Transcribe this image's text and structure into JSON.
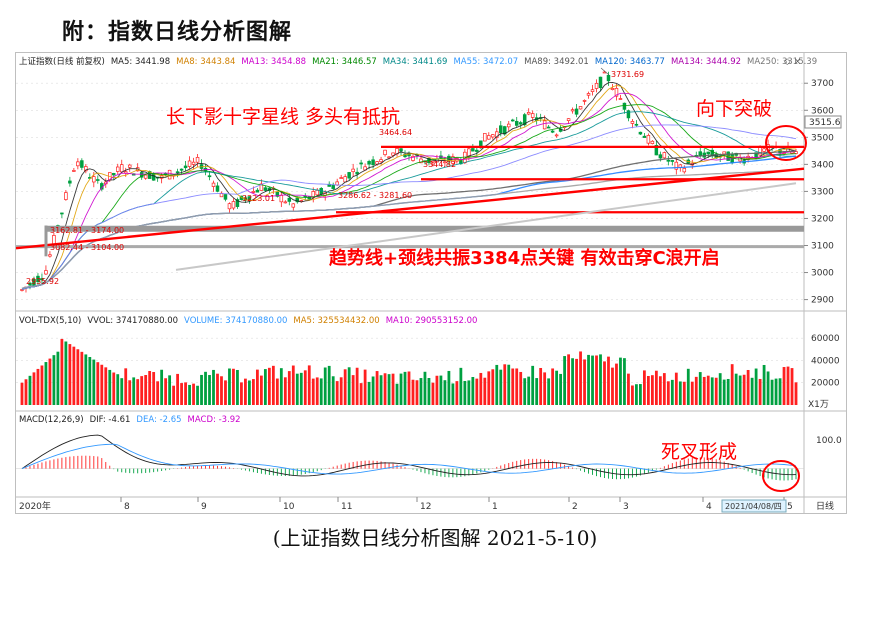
{
  "title": "附：指数日线分析图解",
  "caption": "(上证指数日线分析图解 2021-5-10)",
  "colors": {
    "up": "#ff2020",
    "down": "#00a040",
    "annotation": "#ff0000",
    "ma5": "#222222",
    "ma8": "#e0a000",
    "ma13": "#cc00cc",
    "ma21": "#00a000",
    "ma34": "#009090",
    "ma55": "#8080ff",
    "ma89": "#606060",
    "ma120": "#2080ff",
    "ma134": "#b000b0",
    "ma250": "#a0a0a0",
    "grid": "#dddddd"
  },
  "price_panel": {
    "header": [
      {
        "text": "上证指数(日线 前复权)",
        "color": "#222222"
      },
      {
        "text": "MA5: 3441.98",
        "color": "#222222"
      },
      {
        "text": "MA8: 3443.84",
        "color": "#d08000"
      },
      {
        "text": "MA13: 3454.88",
        "color": "#cc00cc"
      },
      {
        "text": "MA21: 3446.57",
        "color": "#008800"
      },
      {
        "text": "MA34: 3441.69",
        "color": "#008888"
      },
      {
        "text": "MA55: 3472.07",
        "color": "#3399ff"
      },
      {
        "text": "MA89: 3492.01",
        "color": "#555555"
      },
      {
        "text": "MA120: 3463.77",
        "color": "#0066cc"
      },
      {
        "text": "MA134: 3444.92",
        "color": "#aa00aa"
      },
      {
        "text": "MA250: 3315.39",
        "color": "#777777"
      }
    ],
    "y_ticks": [
      "3700",
      "3600",
      "3500",
      "3400",
      "3300",
      "3200",
      "3100",
      "3000",
      "2900"
    ],
    "current_value": "3515.6",
    "labels": {
      "high": "3731.69",
      "p1": "3464.64",
      "p2": "3344.82",
      "p3": "3223.01",
      "p4": "3286.62 - 3281.60",
      "p5": "3162.81 - 3174.00",
      "p6": "3082.44 - 3104.00",
      "low": "2935.92"
    },
    "annotations": {
      "a1": "长下影十字星线  多头有抵抗",
      "a2": "向下突破",
      "a3": "趋势线+颈线共振3384点关键  有效击穿C浪开启"
    }
  },
  "volume_panel": {
    "header": [
      {
        "text": "VOL-TDX(5,10)",
        "color": "#222222"
      },
      {
        "text": "VVOL: 374170880.00",
        "color": "#222222"
      },
      {
        "text": "VOLUME: 374170880.00",
        "color": "#3399ff"
      },
      {
        "text": "MA5: 325534432.00",
        "color": "#d08000"
      },
      {
        "text": "MA10: 290553152.00",
        "color": "#cc00cc"
      }
    ],
    "y_ticks": [
      "60000",
      "40000",
      "20000"
    ],
    "unit": "X1万"
  },
  "macd_panel": {
    "header": [
      {
        "text": "MACD(12,26,9)",
        "color": "#222222"
      },
      {
        "text": "DIF: -4.61",
        "color": "#222222"
      },
      {
        "text": "DEA: -2.65",
        "color": "#3399ff"
      },
      {
        "text": "MACD: -3.92",
        "color": "#cc00cc"
      }
    ],
    "y_tick": "100.0",
    "annotation": "死叉形成"
  },
  "x_axis": {
    "labels": [
      "2020年",
      "8",
      "9",
      "10",
      "11",
      "12",
      "1",
      "2",
      "3",
      "4",
      "5"
    ],
    "date_box": "2021/04/08/四",
    "period": "日线"
  },
  "chart_data": {
    "type": "line",
    "title": "",
    "xlabel": "",
    "ylabel": "",
    "ylim": [
      2880,
      3760
    ],
    "x": [
      "2020年",
      "8",
      "9",
      "10",
      "11",
      "12",
      "1",
      "2",
      "3",
      "4",
      "5"
    ],
    "series": [
      {
        "name": "上证指数(日线 前复权)",
        "values": [
          2960,
          3350,
          3330,
          3250,
          3310,
          3380,
          3500,
          3560,
          3440,
          3430,
          3445
        ]
      },
      {
        "name": "MA250",
        "values": [
          2950,
          2990,
          3030,
          3080,
          3120,
          3170,
          3210,
          3250,
          3290,
          3310,
          3315.39
        ]
      }
    ],
    "levels": [
      3731.69,
      3464.64,
      3344.82,
      3223.01,
      3286.62,
      3162.81,
      3082.44,
      2935.92,
      3384
    ],
    "volume_ylim": [
      0,
      70000
    ],
    "macd_ylim": [
      -80,
      130
    ]
  }
}
